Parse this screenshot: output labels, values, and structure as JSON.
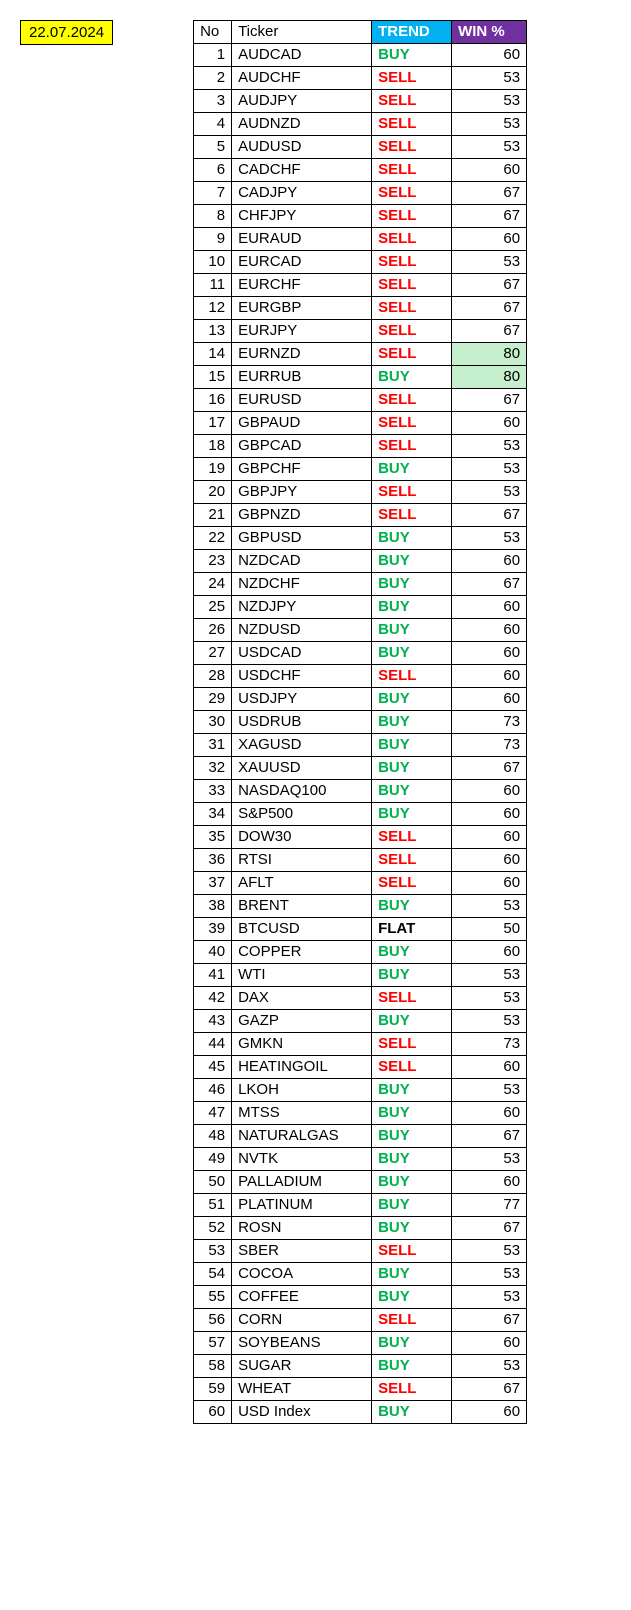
{
  "date": "22.07.2024",
  "headers": {
    "no": "No",
    "ticker": "Ticker",
    "trend": "TREND",
    "win": "WIN %"
  },
  "colors": {
    "date_bg": "#ffff00",
    "trend_header_bg": "#00b0f0",
    "win_header_bg": "#7030a0",
    "header_fg": "#ffffff",
    "buy": "#00b050",
    "sell": "#ff0000",
    "flat": "#000000",
    "highlight_bg": "#c6efce",
    "border": "#000000"
  },
  "rows": [
    {
      "no": 1,
      "ticker": "AUDCAD",
      "trend": "BUY",
      "win": 60,
      "hl": false
    },
    {
      "no": 2,
      "ticker": "AUDCHF",
      "trend": "SELL",
      "win": 53,
      "hl": false
    },
    {
      "no": 3,
      "ticker": "AUDJPY",
      "trend": "SELL",
      "win": 53,
      "hl": false
    },
    {
      "no": 4,
      "ticker": "AUDNZD",
      "trend": "SELL",
      "win": 53,
      "hl": false
    },
    {
      "no": 5,
      "ticker": "AUDUSD",
      "trend": "SELL",
      "win": 53,
      "hl": false
    },
    {
      "no": 6,
      "ticker": "CADCHF",
      "trend": "SELL",
      "win": 60,
      "hl": false
    },
    {
      "no": 7,
      "ticker": "CADJPY",
      "trend": "SELL",
      "win": 67,
      "hl": false
    },
    {
      "no": 8,
      "ticker": "CHFJPY",
      "trend": "SELL",
      "win": 67,
      "hl": false
    },
    {
      "no": 9,
      "ticker": "EURAUD",
      "trend": "SELL",
      "win": 60,
      "hl": false
    },
    {
      "no": 10,
      "ticker": "EURCAD",
      "trend": "SELL",
      "win": 53,
      "hl": false
    },
    {
      "no": 11,
      "ticker": "EURCHF",
      "trend": "SELL",
      "win": 67,
      "hl": false
    },
    {
      "no": 12,
      "ticker": "EURGBP",
      "trend": "SELL",
      "win": 67,
      "hl": false
    },
    {
      "no": 13,
      "ticker": "EURJPY",
      "trend": "SELL",
      "win": 67,
      "hl": false
    },
    {
      "no": 14,
      "ticker": "EURNZD",
      "trend": "SELL",
      "win": 80,
      "hl": true
    },
    {
      "no": 15,
      "ticker": "EURRUB",
      "trend": "BUY",
      "win": 80,
      "hl": true
    },
    {
      "no": 16,
      "ticker": "EURUSD",
      "trend": "SELL",
      "win": 67,
      "hl": false
    },
    {
      "no": 17,
      "ticker": "GBPAUD",
      "trend": "SELL",
      "win": 60,
      "hl": false
    },
    {
      "no": 18,
      "ticker": "GBPCAD",
      "trend": "SELL",
      "win": 53,
      "hl": false
    },
    {
      "no": 19,
      "ticker": "GBPCHF",
      "trend": "BUY",
      "win": 53,
      "hl": false
    },
    {
      "no": 20,
      "ticker": "GBPJPY",
      "trend": "SELL",
      "win": 53,
      "hl": false
    },
    {
      "no": 21,
      "ticker": "GBPNZD",
      "trend": "SELL",
      "win": 67,
      "hl": false
    },
    {
      "no": 22,
      "ticker": "GBPUSD",
      "trend": "BUY",
      "win": 53,
      "hl": false
    },
    {
      "no": 23,
      "ticker": "NZDCAD",
      "trend": "BUY",
      "win": 60,
      "hl": false
    },
    {
      "no": 24,
      "ticker": "NZDCHF",
      "trend": "BUY",
      "win": 67,
      "hl": false
    },
    {
      "no": 25,
      "ticker": "NZDJPY",
      "trend": "BUY",
      "win": 60,
      "hl": false
    },
    {
      "no": 26,
      "ticker": "NZDUSD",
      "trend": "BUY",
      "win": 60,
      "hl": false
    },
    {
      "no": 27,
      "ticker": "USDCAD",
      "trend": "BUY",
      "win": 60,
      "hl": false
    },
    {
      "no": 28,
      "ticker": "USDCHF",
      "trend": "SELL",
      "win": 60,
      "hl": false
    },
    {
      "no": 29,
      "ticker": "USDJPY",
      "trend": "BUY",
      "win": 60,
      "hl": false
    },
    {
      "no": 30,
      "ticker": "USDRUB",
      "trend": "BUY",
      "win": 73,
      "hl": false
    },
    {
      "no": 31,
      "ticker": "XAGUSD",
      "trend": "BUY",
      "win": 73,
      "hl": false
    },
    {
      "no": 32,
      "ticker": "XAUUSD",
      "trend": "BUY",
      "win": 67,
      "hl": false
    },
    {
      "no": 33,
      "ticker": "NASDAQ100",
      "trend": "BUY",
      "win": 60,
      "hl": false
    },
    {
      "no": 34,
      "ticker": "S&P500",
      "trend": "BUY",
      "win": 60,
      "hl": false
    },
    {
      "no": 35,
      "ticker": "DOW30",
      "trend": "SELL",
      "win": 60,
      "hl": false
    },
    {
      "no": 36,
      "ticker": "RTSI",
      "trend": "SELL",
      "win": 60,
      "hl": false
    },
    {
      "no": 37,
      "ticker": "AFLT",
      "trend": "SELL",
      "win": 60,
      "hl": false
    },
    {
      "no": 38,
      "ticker": "BRENT",
      "trend": "BUY",
      "win": 53,
      "hl": false
    },
    {
      "no": 39,
      "ticker": "BTCUSD",
      "trend": "FLAT",
      "win": 50,
      "hl": false
    },
    {
      "no": 40,
      "ticker": "COPPER",
      "trend": "BUY",
      "win": 60,
      "hl": false
    },
    {
      "no": 41,
      "ticker": "WTI",
      "trend": "BUY",
      "win": 53,
      "hl": false
    },
    {
      "no": 42,
      "ticker": "DAX",
      "trend": "SELL",
      "win": 53,
      "hl": false
    },
    {
      "no": 43,
      "ticker": "GAZP",
      "trend": "BUY",
      "win": 53,
      "hl": false
    },
    {
      "no": 44,
      "ticker": "GMKN",
      "trend": "SELL",
      "win": 73,
      "hl": false
    },
    {
      "no": 45,
      "ticker": "HEATINGOIL",
      "trend": "SELL",
      "win": 60,
      "hl": false
    },
    {
      "no": 46,
      "ticker": "LKOH",
      "trend": "BUY",
      "win": 53,
      "hl": false
    },
    {
      "no": 47,
      "ticker": "MTSS",
      "trend": "BUY",
      "win": 60,
      "hl": false
    },
    {
      "no": 48,
      "ticker": "NATURALGAS",
      "trend": "BUY",
      "win": 67,
      "hl": false
    },
    {
      "no": 49,
      "ticker": "NVTK",
      "trend": "BUY",
      "win": 53,
      "hl": false
    },
    {
      "no": 50,
      "ticker": "PALLADIUM",
      "trend": "BUY",
      "win": 60,
      "hl": false
    },
    {
      "no": 51,
      "ticker": "PLATINUM",
      "trend": "BUY",
      "win": 77,
      "hl": false
    },
    {
      "no": 52,
      "ticker": "ROSN",
      "trend": "BUY",
      "win": 67,
      "hl": false
    },
    {
      "no": 53,
      "ticker": "SBER",
      "trend": "SELL",
      "win": 53,
      "hl": false
    },
    {
      "no": 54,
      "ticker": "COCOA",
      "trend": "BUY",
      "win": 53,
      "hl": false
    },
    {
      "no": 55,
      "ticker": "COFFEE",
      "trend": "BUY",
      "win": 53,
      "hl": false
    },
    {
      "no": 56,
      "ticker": "CORN",
      "trend": "SELL",
      "win": 67,
      "hl": false
    },
    {
      "no": 57,
      "ticker": "SOYBEANS",
      "trend": "BUY",
      "win": 60,
      "hl": false
    },
    {
      "no": 58,
      "ticker": "SUGAR",
      "trend": "BUY",
      "win": 53,
      "hl": false
    },
    {
      "no": 59,
      "ticker": "WHEAT",
      "trend": "SELL",
      "win": 67,
      "hl": false
    },
    {
      "no": 60,
      "ticker": "USD Index",
      "trend": "BUY",
      "win": 60,
      "hl": false
    }
  ]
}
